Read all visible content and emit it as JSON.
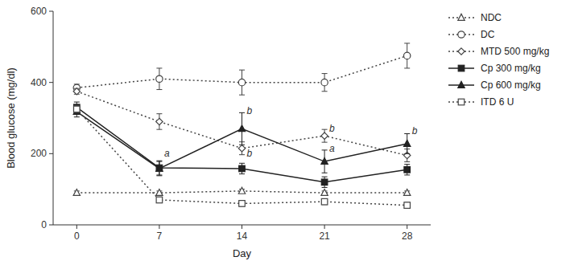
{
  "chart_data": {
    "type": "line",
    "xlabel": "Day",
    "ylabel": "Blood glucose (mg/dl)",
    "x": [
      0,
      7,
      14,
      21,
      28
    ],
    "xlim": [
      -2,
      30
    ],
    "xticks": [
      0,
      7,
      14,
      21,
      28
    ],
    "ylim": [
      0,
      600
    ],
    "yticks": [
      0,
      200,
      400,
      600
    ],
    "grid": false,
    "legend": "right",
    "series": [
      {
        "name": "NDC",
        "color": "#444444",
        "marker": "triangle-open",
        "line_style": "dotted",
        "values": [
          90,
          90,
          95,
          90,
          90
        ],
        "errors": [
          5,
          5,
          5,
          5,
          5
        ]
      },
      {
        "name": "DC",
        "color": "#444444",
        "marker": "circle-open",
        "line_style": "dotted",
        "values": [
          385,
          410,
          400,
          400,
          475
        ],
        "errors": [
          10,
          30,
          35,
          25,
          35
        ]
      },
      {
        "name": "MTD 500 mg/kg",
        "color": "#444444",
        "marker": "diamond-open",
        "line_style": "dotted",
        "values": [
          375,
          290,
          215,
          250,
          195
        ],
        "errors": [
          8,
          22,
          18,
          18,
          18
        ]
      },
      {
        "name": "Cp 300 mg/kg",
        "color": "#222222",
        "marker": "square-filled",
        "line_style": "solid",
        "values": [
          330,
          160,
          158,
          120,
          155
        ],
        "errors": [
          15,
          20,
          15,
          15,
          15
        ]
      },
      {
        "name": "Cp 600 mg/kg",
        "color": "#222222",
        "marker": "triangle-filled",
        "line_style": "solid",
        "values": [
          318,
          158,
          270,
          178,
          228
        ],
        "errors": [
          15,
          20,
          45,
          32,
          28
        ]
      },
      {
        "name": "ITD 6 U",
        "color": "#444444",
        "marker": "square-open",
        "line_style": "dotted",
        "values": [
          325,
          70,
          60,
          65,
          55
        ],
        "errors": [
          10,
          8,
          8,
          8,
          8
        ]
      }
    ],
    "annotations": [
      {
        "x": 7,
        "y": 200,
        "text": "a"
      },
      {
        "x": 14,
        "y": 320,
        "text": "b"
      },
      {
        "x": 14,
        "y": 200,
        "text": "b"
      },
      {
        "x": 21,
        "y": 215,
        "text": "a"
      },
      {
        "x": 21,
        "y": 270,
        "text": "b"
      },
      {
        "x": 28,
        "y": 265,
        "text": "b"
      }
    ]
  }
}
